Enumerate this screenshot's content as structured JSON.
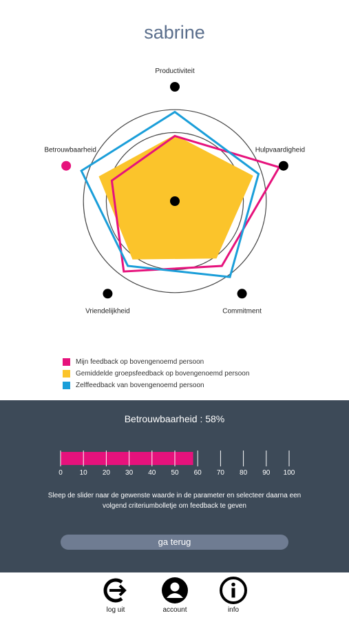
{
  "header": {
    "title": "sabrine"
  },
  "radar": {
    "axes": [
      "Productiviteit",
      "Hulpvaardigheid",
      "Commitment",
      "Vriendelijkheid",
      "Betrouwbaarheid"
    ],
    "max": 100,
    "rings": [
      20,
      40,
      60,
      80
    ],
    "selected_axis": "Betrouwbaarheid",
    "series": [
      {
        "name": "Gemiddelde groepsfeedback op bovengenoemd persoon",
        "color": "#fbc42b",
        "values": [
          58,
          72,
          62,
          63,
          70
        ]
      },
      {
        "name": "Mijn feedback op bovengenoemd persoon",
        "color": "#e6127c",
        "values": [
          57,
          96,
          70,
          76,
          58
        ]
      },
      {
        "name": "Zelffeedback van bovengenoemd persoon",
        "color": "#1a9ed9",
        "values": [
          78,
          77,
          82,
          70,
          86
        ]
      }
    ],
    "colors": {
      "axis_dot": "#000000",
      "selected_dot": "#e6127c",
      "ring": "#444444"
    }
  },
  "legend": [
    {
      "label": "Mijn feedback op bovengenoemd persoon",
      "color": "#e6127c"
    },
    {
      "label": "Gemiddelde groepsfeedback op bovengenoemd persoon",
      "color": "#fbc42b"
    },
    {
      "label": "Zelffeedback van bovengenoemd persoon",
      "color": "#1a9ed9"
    }
  ],
  "panel": {
    "parameter_label": "Betrouwbaarheid : 58%",
    "slider": {
      "value": 58,
      "min": 0,
      "max": 100,
      "ticks": [
        "0",
        "10",
        "20",
        "30",
        "40",
        "50",
        "60",
        "70",
        "80",
        "90",
        "100"
      ],
      "fill_color": "#e6127c"
    },
    "instructions": "Sleep de slider naar de gewenste waarde in de parameter en selecteer daarna een volgend criteriumbolletje om feedback te geven",
    "back_button": "ga terug"
  },
  "nav": [
    {
      "label": "log uit",
      "icon": "logout-icon"
    },
    {
      "label": "account",
      "icon": "account-icon"
    },
    {
      "label": "info",
      "icon": "info-icon"
    }
  ]
}
